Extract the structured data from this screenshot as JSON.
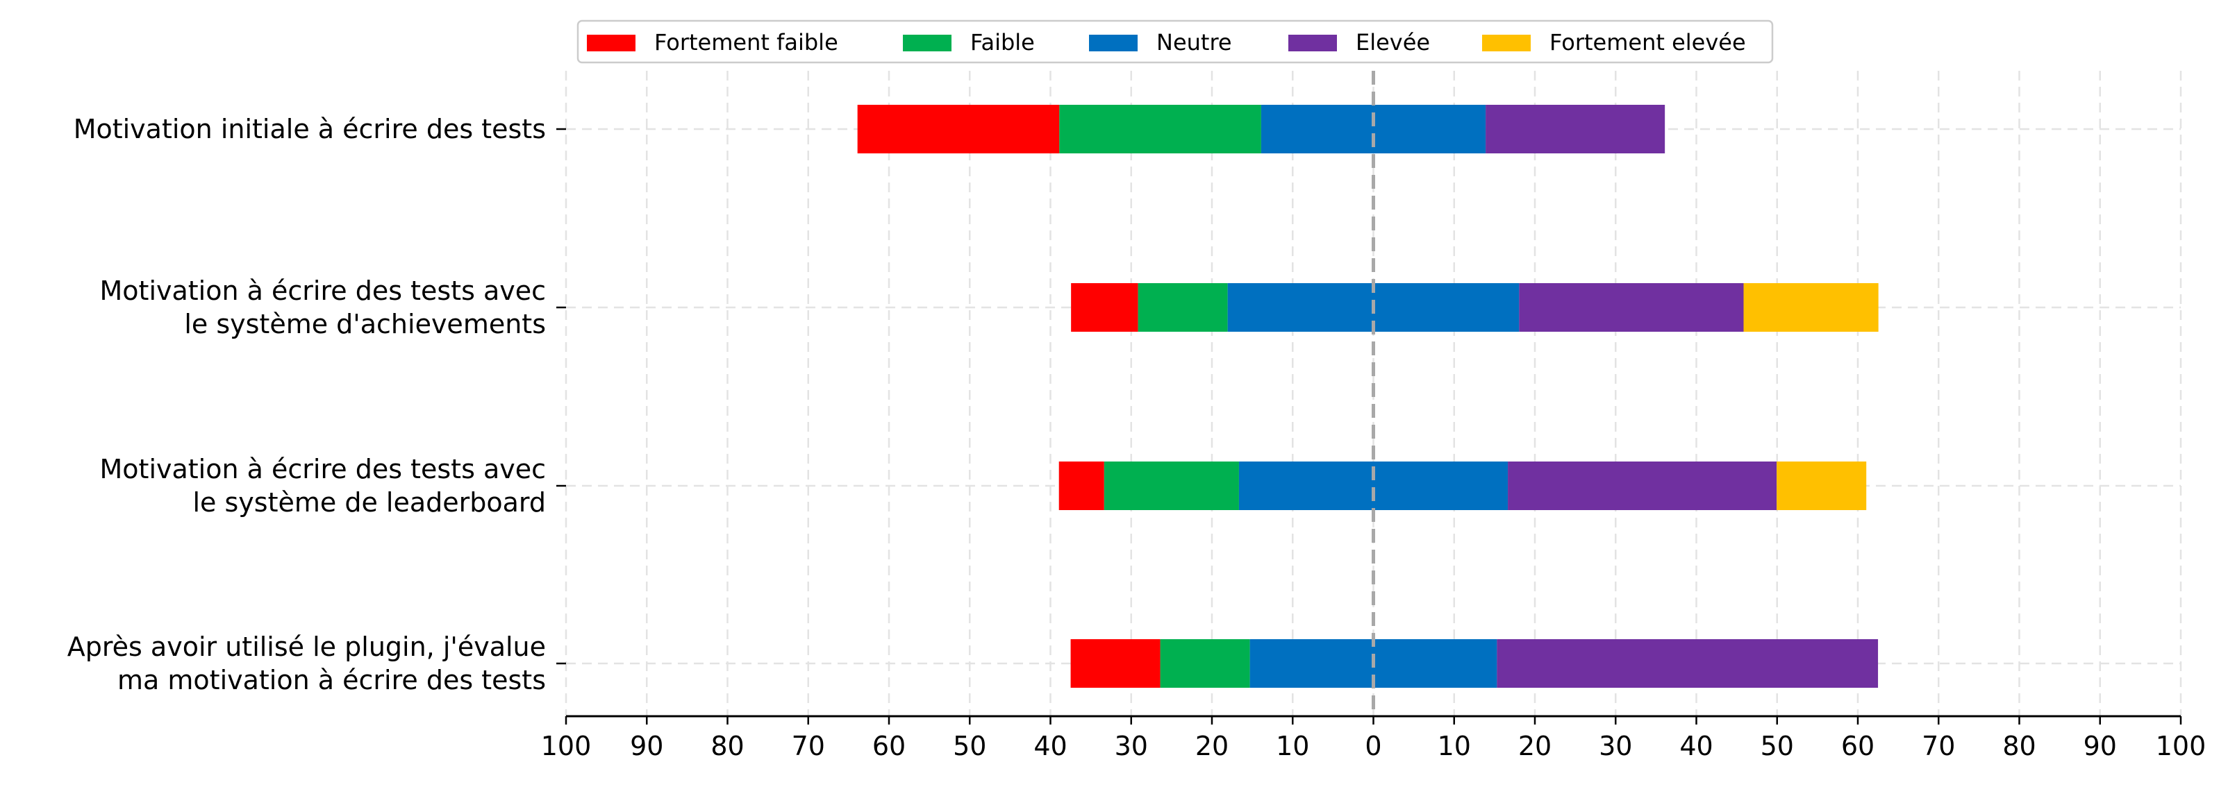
{
  "chart_data": {
    "type": "bar",
    "orientation": "horizontal",
    "stacking": "diverging",
    "xlim": [
      -100,
      100
    ],
    "x_ticks": [
      -100,
      -90,
      -80,
      -70,
      -60,
      -50,
      -40,
      -30,
      -20,
      -10,
      0,
      10,
      20,
      30,
      40,
      50,
      60,
      70,
      80,
      90,
      100
    ],
    "x_tick_labels": [
      "100",
      "90",
      "80",
      "70",
      "60",
      "50",
      "40",
      "30",
      "20",
      "10",
      "0",
      "10",
      "20",
      "30",
      "40",
      "50",
      "60",
      "70",
      "80",
      "90",
      "100"
    ],
    "grid": true,
    "legend_position": "top-center",
    "categories": [
      [
        "Motivation initiale à écrire des tests"
      ],
      [
        "Motivation à écrire des tests avec",
        "le système d'achievements"
      ],
      [
        "Motivation à écrire des tests avec",
        "le système de leaderboard"
      ],
      [
        "Après avoir utilisé le plugin, j'évalue",
        "ma motivation à écrire des tests"
      ]
    ],
    "series": [
      {
        "name": "Fortement faible",
        "color": "#ff0000",
        "values": [
          25.0,
          8.3,
          5.6,
          11.1
        ]
      },
      {
        "name": "Faible",
        "color": "#00b050",
        "values": [
          25.0,
          11.1,
          16.7,
          11.1
        ]
      },
      {
        "name": "Neutre",
        "color": "#0070c0",
        "values": [
          27.8,
          36.1,
          33.3,
          30.6
        ]
      },
      {
        "name": "Elevée",
        "color": "#7030a0",
        "values": [
          22.2,
          27.8,
          33.3,
          47.2
        ]
      },
      {
        "name": "Fortement elevée",
        "color": "#ffc000",
        "values": [
          0,
          16.7,
          11.1,
          0
        ]
      }
    ]
  }
}
